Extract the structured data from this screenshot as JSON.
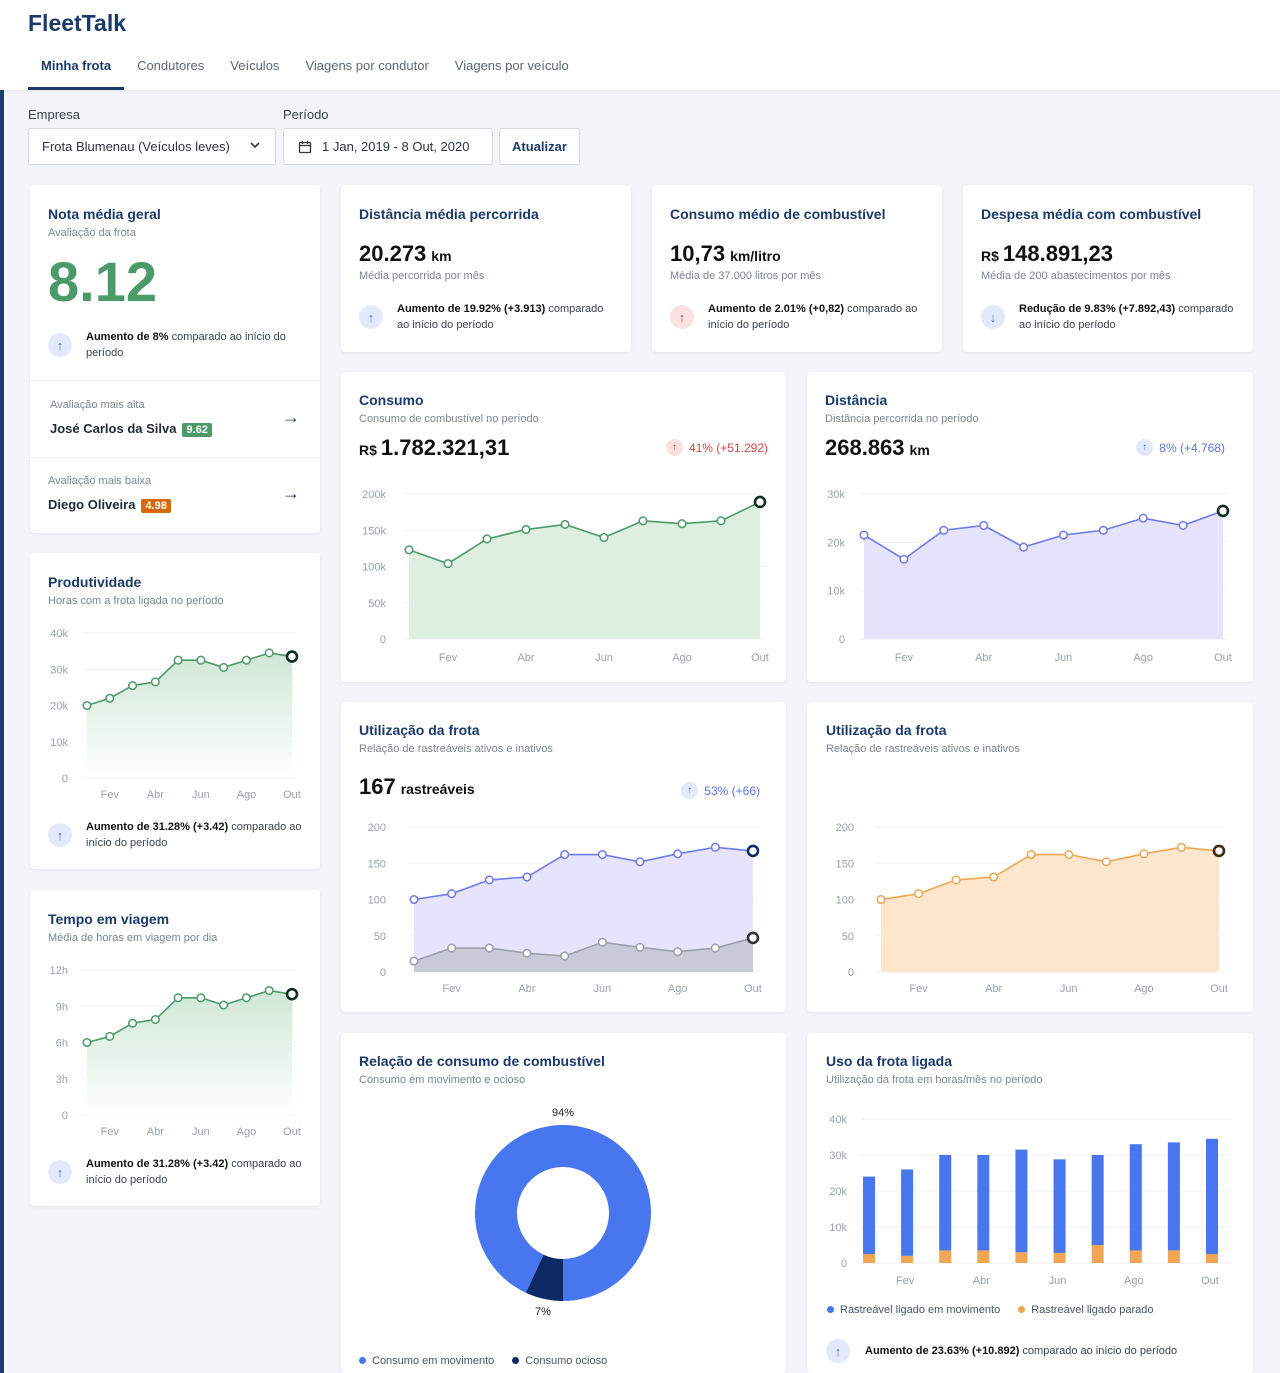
{
  "app": {
    "brand": "FleetTalk"
  },
  "tabs": [
    "Minha frota",
    "Condutores",
    "Veículos",
    "Viagens por condutor",
    "Viagens por veículo"
  ],
  "filters": {
    "empresa_label": "Empresa",
    "empresa_value": "Frota Blumenau (Veículos leves)",
    "periodo_label": "Período",
    "periodo_value": "1 Jan, 2019 - 8 Out, 2020",
    "refresh_label": "Atualizar"
  },
  "colors": {
    "green": "#4c9a6a",
    "purple": "#6e7bea",
    "orange": "#f0a653",
    "blue": "#4876ee",
    "navy": "#0d2a66",
    "red": "#d64545"
  },
  "nota": {
    "title": "Nota média geral",
    "subtitle": "Avaliação da frota",
    "value": "8.12",
    "delta_bold": "Aumento de 8%",
    "delta_rest": " comparado ao início do período",
    "high_label": "Avaliação mais alta",
    "high_name": "José Carlos da Silva",
    "high_score": "9.62",
    "low_label": "Avaliação mais baixa",
    "low_name": "Diego Oliveira",
    "low_score": "4.98"
  },
  "kpis": [
    {
      "title": "Distância média percorrida",
      "prefix": "",
      "value": "20.273",
      "unit": "km",
      "sub": "Média percorrida por mês",
      "delta_bold": "Aumento de 19.92% (+3.913)",
      "delta_rest": " comparado ao início do período",
      "icon": "arrow-up-icon"
    },
    {
      "title": "Consumo médio de combustível",
      "prefix": "",
      "value": "10,73",
      "unit": "km/litro",
      "sub": "Média de 37.000 litros por mês",
      "delta_bold": "Aumento de 2.01% (+0,82)",
      "delta_rest": " comparado ao início do período",
      "icon": "arrow-up-icon"
    },
    {
      "title": "Despesa média com combustível",
      "prefix": "R$",
      "value": "148.891,23",
      "unit": "",
      "sub": "Média de 200 abastecimentos por mês",
      "delta_bold": "Redução de 9.83% (+7.892,43)",
      "delta_rest": " comparado ao início do período",
      "icon": "arrow-down-icon"
    }
  ],
  "consumo": {
    "title": "Consumo",
    "subtitle": "Consumo de combustível no período",
    "prefix": "R$",
    "value": "1.782.321,31",
    "change": "41% (+51.292)"
  },
  "distancia": {
    "title": "Distância",
    "subtitle": "Distância percorrida no período",
    "value": "268.863",
    "unit": "km",
    "change": "8% (+4.768)"
  },
  "produtividade": {
    "title": "Produtividade",
    "subtitle": "Horas com a frota ligada no período",
    "delta_bold": "Aumento de 31.28% (+3.42)",
    "delta_rest": " comparado ao início do período"
  },
  "tempo": {
    "title": "Tempo em viagem",
    "subtitle": "Média de horas em viagem por dia",
    "delta_bold": "Aumento de 31.28% (+3.42)",
    "delta_rest": " comparado ao início do período"
  },
  "util1": {
    "title": "Utilização da frota",
    "subtitle": "Relação de rastreáveis ativos e inativos",
    "value": "167",
    "unit": "rastreáveis",
    "change": "53% (+66)"
  },
  "util2": {
    "title": "Utilização da frota",
    "subtitle": "Relação de rastreáveis ativos e inativos"
  },
  "relacao": {
    "title": "Relação de consumo de combustível",
    "subtitle": "Consumo em movimento e ocioso",
    "legend": [
      "Consumo em movimento",
      "Consumo ocioso"
    ]
  },
  "uso": {
    "title": "Uso da frota ligada",
    "subtitle": "Utilização da frota em horas/mês no período",
    "legend": [
      "Rastreável ligado em movimento",
      "Rastreável ligado parado"
    ],
    "delta_bold": "Aumento de 23.63% (+10.892)",
    "delta_rest": " comparado ao início do período"
  },
  "chart_data": [
    {
      "id": "consumo",
      "type": "area",
      "x_ticks": [
        "Fev",
        "Abr",
        "Jun",
        "Ago",
        "Out"
      ],
      "yticks": [
        "0",
        "50k",
        "100k",
        "150k",
        "200k"
      ],
      "ylim": [
        0,
        200000
      ],
      "series": [
        {
          "values": [
            123000,
            104000,
            138000,
            151000,
            158000,
            140000,
            163000,
            159000,
            163000,
            189000
          ]
        }
      ]
    },
    {
      "id": "distancia",
      "type": "area",
      "x_ticks": [
        "Fev",
        "Abr",
        "Jun",
        "Ago",
        "Out"
      ],
      "yticks": [
        "0",
        "10k",
        "20k",
        "30k"
      ],
      "ylim": [
        0,
        30000
      ],
      "series": [
        {
          "values": [
            21500,
            16500,
            22500,
            23500,
            19000,
            21500,
            22500,
            25000,
            23500,
            26500
          ]
        }
      ]
    },
    {
      "id": "produtividade",
      "type": "area",
      "x_ticks": [
        "Fev",
        "Abr",
        "Jun",
        "Ago",
        "Out"
      ],
      "yticks": [
        "0",
        "10k",
        "20k",
        "30k",
        "40k"
      ],
      "ylim": [
        0,
        40000
      ],
      "series": [
        {
          "values": [
            20000,
            22000,
            25500,
            26500,
            32500,
            32500,
            30500,
            32500,
            34500,
            33500
          ]
        }
      ]
    },
    {
      "id": "tempo",
      "type": "area",
      "x_ticks": [
        "Fev",
        "Abr",
        "Jun",
        "Ago",
        "Out"
      ],
      "yticks": [
        "0",
        "3h",
        "6h",
        "9h",
        "12h"
      ],
      "ylim": [
        0,
        12
      ],
      "series": [
        {
          "values": [
            6,
            6.5,
            7.6,
            7.9,
            9.7,
            9.7,
            9.1,
            9.7,
            10.3,
            10
          ]
        }
      ]
    },
    {
      "id": "util1",
      "type": "area",
      "x_ticks": [
        "Fev",
        "Abr",
        "Jun",
        "Ago",
        "Out"
      ],
      "yticks": [
        "0",
        "50",
        "100",
        "150",
        "200"
      ],
      "ylim": [
        0,
        200
      ],
      "series": [
        {
          "values": [
            100,
            108,
            127,
            131,
            162,
            162,
            152,
            163,
            172,
            167
          ]
        },
        {
          "values": [
            15,
            33,
            33,
            26,
            22,
            41,
            34,
            28,
            33,
            47
          ]
        }
      ]
    },
    {
      "id": "util2",
      "type": "area",
      "x_ticks": [
        "Fev",
        "Abr",
        "Jun",
        "Ago",
        "Out"
      ],
      "yticks": [
        "0",
        "50",
        "100",
        "150",
        "200"
      ],
      "ylim": [
        0,
        200
      ],
      "series": [
        {
          "values": [
            100,
            108,
            127,
            131,
            162,
            162,
            152,
            163,
            172,
            167
          ]
        }
      ]
    },
    {
      "id": "relacao",
      "type": "pie",
      "labels": [
        "Consumo em movimento",
        "Consumo ocioso"
      ],
      "values": [
        94,
        7
      ]
    },
    {
      "id": "uso",
      "type": "bar",
      "stacked": true,
      "x_ticks": [
        "Fev",
        "Abr",
        "Jun",
        "Ago",
        "Out"
      ],
      "yticks": [
        "0",
        "10k",
        "20k",
        "30k",
        "40k"
      ],
      "ylim": [
        0,
        40000
      ],
      "series": [
        {
          "name": "Rastreável ligado em movimento",
          "values": [
            21500,
            24000,
            26500,
            26500,
            28500,
            26000,
            25000,
            29500,
            30000,
            32000
          ]
        },
        {
          "name": "Rastreável ligado parado",
          "values": [
            2500,
            2000,
            3500,
            3500,
            3000,
            2800,
            5000,
            3500,
            3500,
            2500
          ]
        }
      ]
    }
  ]
}
